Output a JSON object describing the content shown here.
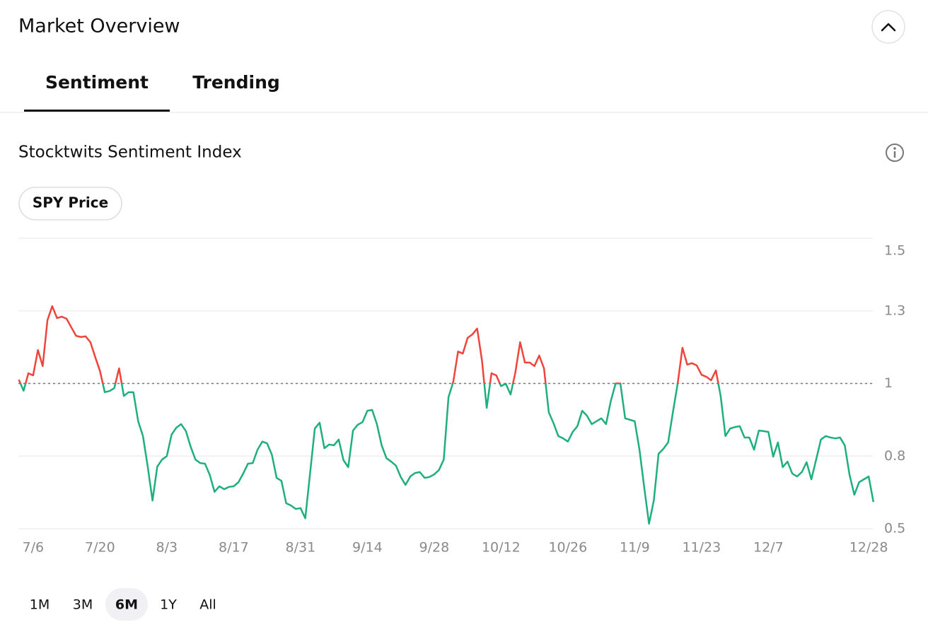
{
  "header": {
    "title": "Market Overview"
  },
  "tabs": {
    "items": [
      "Sentiment",
      "Trending"
    ],
    "active": "Sentiment"
  },
  "section": {
    "title": "Stocktwits Sentiment Index",
    "toggle": "SPY Price"
  },
  "chart_data": {
    "type": "line",
    "categories": [
      null,
      null,
      null,
      "7/6",
      null,
      null,
      null,
      null,
      null,
      null,
      null,
      null,
      null,
      null,
      null,
      null,
      null,
      "7/20",
      null,
      null,
      null,
      null,
      null,
      null,
      null,
      null,
      null,
      null,
      null,
      null,
      null,
      "8/3",
      null,
      null,
      null,
      null,
      null,
      null,
      null,
      null,
      null,
      null,
      null,
      null,
      null,
      "8/17",
      null,
      null,
      null,
      null,
      null,
      null,
      null,
      null,
      null,
      null,
      null,
      null,
      null,
      "8/31",
      null,
      null,
      null,
      null,
      null,
      null,
      null,
      null,
      null,
      null,
      null,
      null,
      null,
      "9/14",
      null,
      null,
      null,
      null,
      null,
      null,
      null,
      null,
      null,
      null,
      null,
      null,
      null,
      "9/28",
      null,
      null,
      null,
      null,
      null,
      null,
      null,
      null,
      null,
      null,
      null,
      null,
      null,
      "10/12",
      null,
      null,
      null,
      null,
      null,
      null,
      null,
      null,
      null,
      null,
      null,
      null,
      null,
      "10/26",
      null,
      null,
      null,
      null,
      null,
      null,
      null,
      null,
      null,
      null,
      null,
      null,
      null,
      "11/9",
      null,
      null,
      null,
      null,
      null,
      null,
      null,
      null,
      null,
      null,
      null,
      null,
      null,
      "11/23",
      null,
      null,
      null,
      null,
      null,
      null,
      null,
      null,
      null,
      null,
      null,
      null,
      null,
      "12/7",
      null,
      null,
      null,
      null,
      null,
      null,
      null,
      null,
      null,
      null,
      null,
      null,
      null,
      null,
      null,
      null,
      null,
      null,
      null,
      null,
      "12/28",
      null
    ],
    "values": [
      1.013,
      0.975,
      1.035,
      1.028,
      1.115,
      1.06,
      1.218,
      1.266,
      1.225,
      1.23,
      1.223,
      1.193,
      1.164,
      1.16,
      1.162,
      1.142,
      1.091,
      1.043,
      0.97,
      0.974,
      0.984,
      1.052,
      0.957,
      0.97,
      0.97,
      0.87,
      0.819,
      0.714,
      0.597,
      0.714,
      0.738,
      0.75,
      0.824,
      0.848,
      0.86,
      0.836,
      0.782,
      0.738,
      0.726,
      0.724,
      0.685,
      0.627,
      0.646,
      0.636,
      0.644,
      0.646,
      0.66,
      0.69,
      0.724,
      0.726,
      0.772,
      0.8,
      0.794,
      0.755,
      0.675,
      0.665,
      0.588,
      0.58,
      0.568,
      0.571,
      0.536,
      0.69,
      0.845,
      0.865,
      0.777,
      0.79,
      0.787,
      0.807,
      0.736,
      0.712,
      0.838,
      0.858,
      0.867,
      0.906,
      0.909,
      0.86,
      0.787,
      0.743,
      0.731,
      0.717,
      0.678,
      0.651,
      0.68,
      0.692,
      0.695,
      0.675,
      0.678,
      0.687,
      0.702,
      0.738,
      0.953,
      1.006,
      1.11,
      1.103,
      1.157,
      1.169,
      1.189,
      1.08,
      0.916,
      1.035,
      1.028,
      0.991,
      0.999,
      0.962,
      1.038,
      1.142,
      1.072,
      1.072,
      1.06,
      1.096,
      1.052,
      0.901,
      0.863,
      0.819,
      0.811,
      0.8,
      0.833,
      0.853,
      0.906,
      0.889,
      0.86,
      0.87,
      0.88,
      0.86,
      0.94,
      1.0,
      1.0,
      0.88,
      0.875,
      0.87,
      0.772,
      0.641,
      0.517,
      0.597,
      0.758,
      0.775,
      0.797,
      0.901,
      1.0,
      1.123,
      1.065,
      1.07,
      1.062,
      1.03,
      1.023,
      1.011,
      1.045,
      0.957,
      0.819,
      0.845,
      0.85,
      0.853,
      0.814,
      0.814,
      0.772,
      0.838,
      0.836,
      0.833,
      0.748,
      0.797,
      0.712,
      0.731,
      0.69,
      0.68,
      0.695,
      0.729,
      0.67,
      0.738,
      0.807,
      0.819,
      0.814,
      0.811,
      0.814,
      0.787,
      0.685,
      0.617,
      0.66,
      0.67,
      0.68,
      0.592
    ],
    "color_above": "#f0443a",
    "color_below": "#1fae7d",
    "baseline": 1,
    "ylim": [
      0.5,
      1.5
    ],
    "yticks": [
      0.5,
      {
        "value": 0.75,
        "label": "0.8"
      },
      1,
      {
        "value": 1.25,
        "label": "1.3"
      },
      1.5
    ],
    "grid": true
  },
  "ranges": {
    "items": [
      "1M",
      "3M",
      "6M",
      "1Y",
      "All"
    ],
    "active": "6M"
  }
}
